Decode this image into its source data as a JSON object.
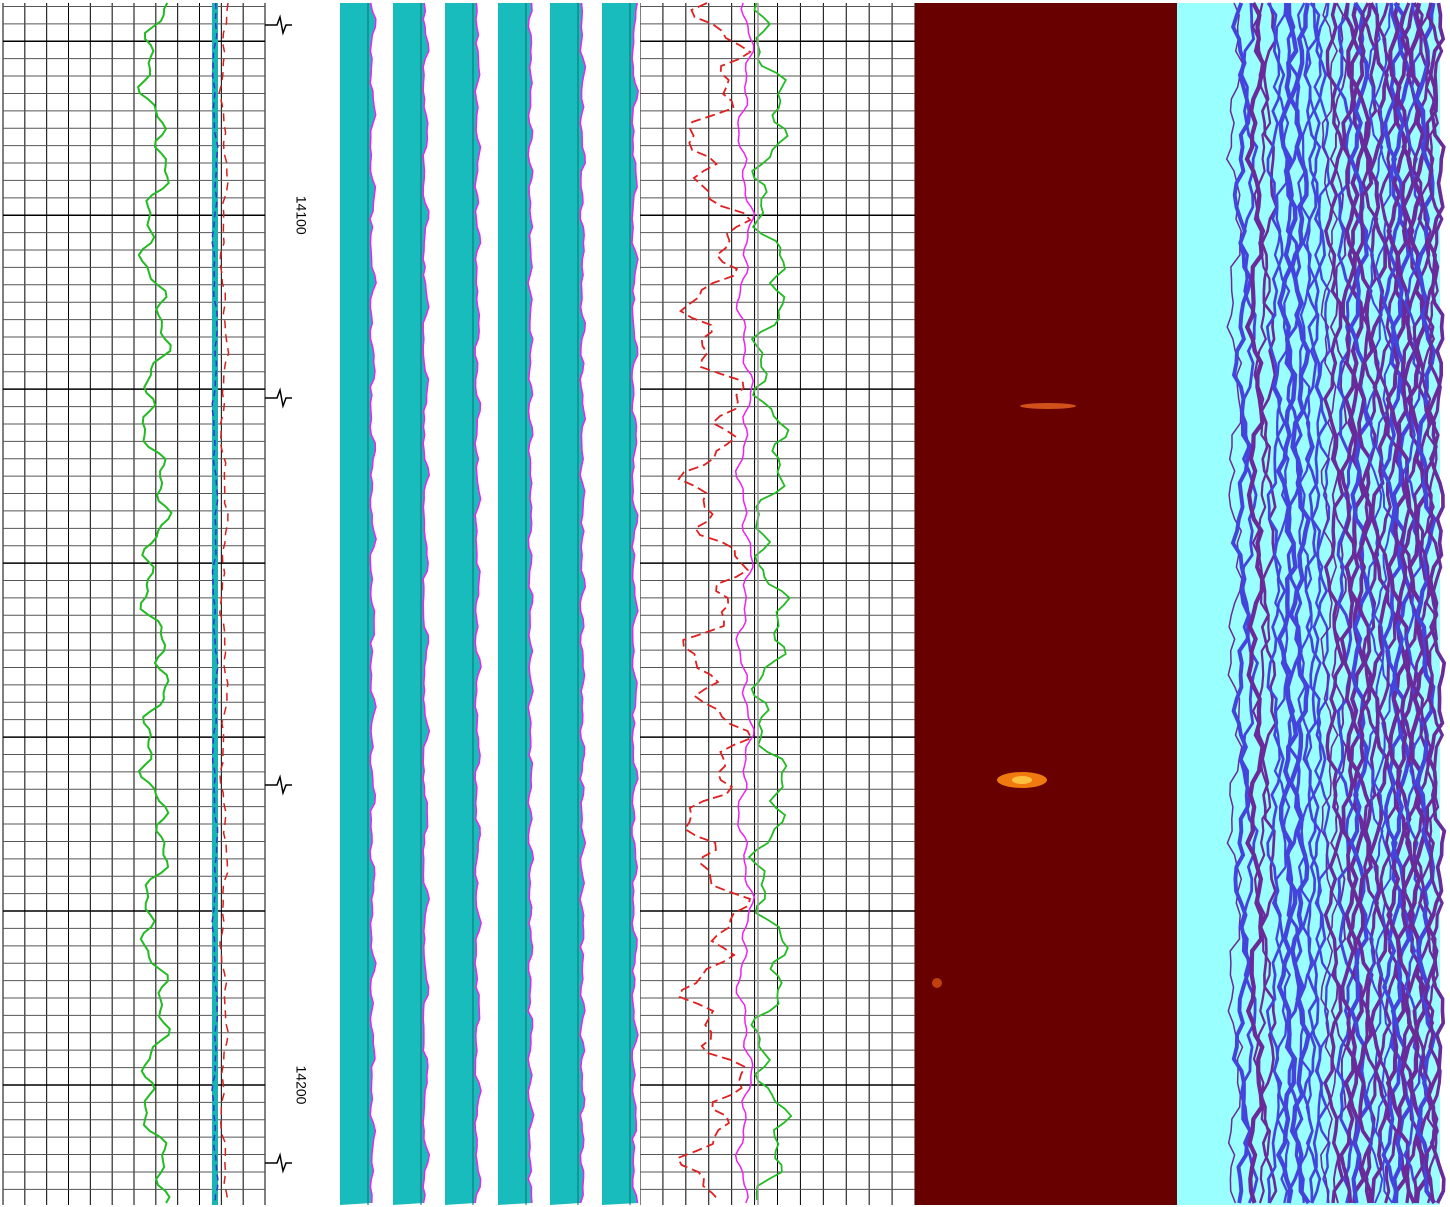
{
  "chart_data": {
    "type": "well-log",
    "ylim": [
      14075.6,
      14213.8
    ],
    "yticks": [
      14100,
      14200
    ]
  }
}
